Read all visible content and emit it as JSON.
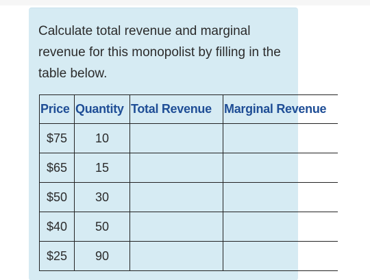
{
  "question": {
    "text": "Calculate total revenue and marginal revenue for this monopolist by filling in the table below."
  },
  "table": {
    "headers": [
      "Price",
      "Quantity",
      "Total Revenue",
      "Marginal Revenue"
    ],
    "rows": [
      {
        "price": "$75",
        "quantity": "10",
        "total_revenue": "",
        "marginal_revenue": ""
      },
      {
        "price": "$65",
        "quantity": "15",
        "total_revenue": "",
        "marginal_revenue": ""
      },
      {
        "price": "$50",
        "quantity": "30",
        "total_revenue": "",
        "marginal_revenue": ""
      },
      {
        "price": "$40",
        "quantity": "50",
        "total_revenue": "",
        "marginal_revenue": ""
      },
      {
        "price": "$25",
        "quantity": "90",
        "total_revenue": "",
        "marginal_revenue": ""
      }
    ]
  },
  "colors": {
    "card_background": "#d6ebf3",
    "header_text": "#1f4e96",
    "body_text": "#2b2b2b"
  }
}
